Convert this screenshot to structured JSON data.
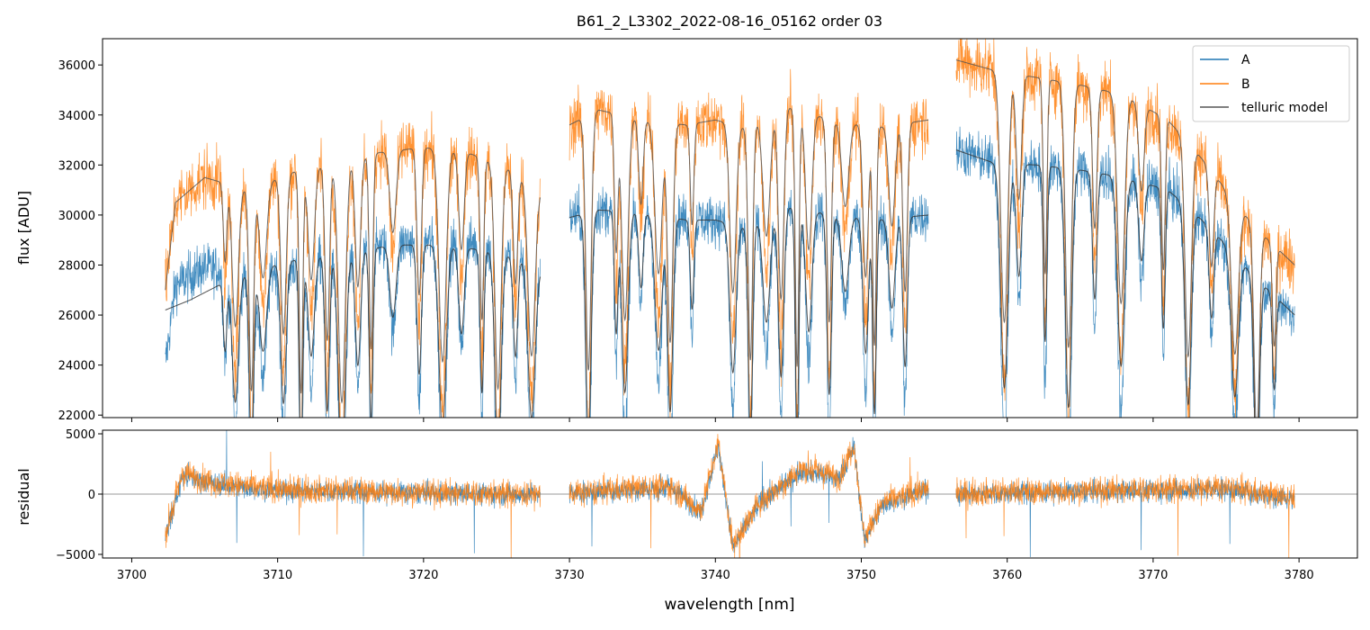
{
  "figure": {
    "title": "B61_2_L3302_2022-08-16_05162  order 03"
  },
  "chart_data": [
    {
      "type": "line",
      "panel": "top",
      "title": "B61_2_L3302_2022-08-16_05162  order 03",
      "xlabel": "",
      "ylabel": "flux [ADU]",
      "xlim": [
        3698,
        3784
      ],
      "ylim": [
        21900,
        37050
      ],
      "x_ticks": [
        3700,
        3710,
        3720,
        3730,
        3740,
        3750,
        3760,
        3770,
        3780
      ],
      "y_ticks": [
        22000,
        24000,
        26000,
        28000,
        30000,
        32000,
        34000,
        36000
      ],
      "x_tick_labels_shown": false,
      "legend": {
        "position": "top-right",
        "entries": [
          "A",
          "B",
          "telluric model"
        ]
      },
      "series": [
        {
          "name": "A",
          "color": "#1f77b4",
          "noise": 700,
          "continuum": [
            [
              3702.3,
              24000
            ],
            [
              3703,
              27200
            ],
            [
              3705,
              27900
            ],
            [
              3708,
              27600
            ],
            [
              3711,
              28000
            ],
            [
              3714,
              28500
            ],
            [
              3717,
              28800
            ],
            [
              3720,
              29000
            ],
            [
              3723,
              28900
            ],
            [
              3725,
              28700
            ],
            [
              3728,
              28100
            ]
          ],
          "segments": [
            [
              3702.3,
              3728
            ],
            [
              3730,
              3754.6
            ],
            [
              3756.5,
              3779.7
            ]
          ]
        },
        {
          "name": "B",
          "color": "#ff7f0e",
          "noise": 900,
          "continuum": [
            [
              3702.3,
              27000
            ],
            [
              3703,
              30500
            ],
            [
              3705,
              31500
            ],
            [
              3708,
              31000
            ],
            [
              3711,
              31700
            ],
            [
              3714,
              32100
            ],
            [
              3717,
              32500
            ],
            [
              3720,
              32700
            ],
            [
              3723,
              32500
            ],
            [
              3726,
              31800
            ],
            [
              3728,
              31000
            ]
          ],
          "segments": [
            [
              3702.3,
              3728
            ],
            [
              3730,
              3754.6
            ],
            [
              3756.5,
              3779.7
            ]
          ]
        },
        {
          "name": "telluric model",
          "color": "#555555",
          "segments": [
            [
              3702.3,
              3728
            ],
            [
              3730,
              3754.6
            ],
            [
              3756.5,
              3779.7
            ]
          ]
        }
      ],
      "continuum_A_mid": [
        [
          3730,
          29900
        ],
        [
          3732,
          30200
        ],
        [
          3735,
          30100
        ],
        [
          3738,
          29800
        ],
        [
          3740,
          29800
        ],
        [
          3742,
          29500
        ],
        [
          3745,
          30300
        ],
        [
          3748,
          30000
        ],
        [
          3751,
          29800
        ],
        [
          3754.6,
          30000
        ]
      ],
      "continuum_B_mid": [
        [
          3730,
          33600
        ],
        [
          3732,
          34200
        ],
        [
          3735,
          33800
        ],
        [
          3738,
          33600
        ],
        [
          3740,
          33800
        ],
        [
          3742,
          33500
        ],
        [
          3745,
          34300
        ],
        [
          3748,
          33800
        ],
        [
          3751,
          33500
        ],
        [
          3754.6,
          33800
        ]
      ],
      "continuum_A_right": [
        [
          3756.5,
          32600
        ],
        [
          3759,
          32100
        ],
        [
          3762,
          32000
        ],
        [
          3765,
          31800
        ],
        [
          3768,
          31500
        ],
        [
          3771,
          31000
        ],
        [
          3773,
          30000
        ],
        [
          3775,
          28800
        ],
        [
          3777,
          27500
        ],
        [
          3779.7,
          26000
        ]
      ],
      "continuum_B_right": [
        [
          3756.5,
          36200
        ],
        [
          3759,
          35800
        ],
        [
          3762,
          35500
        ],
        [
          3765,
          35200
        ],
        [
          3768,
          34800
        ],
        [
          3771,
          33800
        ],
        [
          3773,
          32500
        ],
        [
          3775,
          31000
        ],
        [
          3777,
          29500
        ],
        [
          3779.7,
          28000
        ]
      ],
      "telluric_A": [
        [
          3702.3,
          26200
        ],
        [
          3704,
          26600
        ],
        [
          3706,
          27200
        ],
        [
          3709,
          27900
        ],
        [
          3712,
          28300
        ],
        [
          3715,
          28500
        ],
        [
          3718,
          28800
        ],
        [
          3721,
          28800
        ],
        [
          3724,
          28600
        ],
        [
          3727,
          28200
        ],
        [
          3728,
          27800
        ]
      ],
      "absorption_lines": [
        3706.4,
        3707.1,
        3708.2,
        3709.0,
        3710.4,
        3711.6,
        3712.3,
        3713.4,
        3714.4,
        3715.5,
        3716.4,
        3717.9,
        3719.7,
        3721.3,
        3722.6,
        3724.0,
        3725.1,
        3726.3,
        3727.4,
        3731.3,
        3733.2,
        3733.8,
        3734.9,
        3736.1,
        3736.9,
        3738.4,
        3741.2,
        3742.4,
        3743.5,
        3744.5,
        3745.6,
        3746.4,
        3747.8,
        3748.9,
        3750.3,
        3750.9,
        3752.1,
        3753.0,
        3759.8,
        3760.8,
        3762.6,
        3764.2,
        3766.0,
        3767.8,
        3769.2,
        3770.7,
        3772.4,
        3774.0,
        3775.6,
        3777.1,
        3778.3
      ]
    },
    {
      "type": "line",
      "panel": "bottom",
      "xlabel": "wavelength [nm]",
      "ylabel": "residual",
      "xlim": [
        3698,
        3784
      ],
      "ylim": [
        -5300,
        5300
      ],
      "x_ticks": [
        3700,
        3710,
        3720,
        3730,
        3740,
        3750,
        3760,
        3770,
        3780
      ],
      "x_tick_labels": [
        "3700",
        "3710",
        "3720",
        "3730",
        "3740",
        "3750",
        "3760",
        "3770",
        "3780"
      ],
      "y_ticks": [
        -5000,
        0,
        5000
      ],
      "y_tick_labels": [
        "−5000",
        "0",
        "5000"
      ],
      "zero_line": true,
      "series": [
        {
          "name": "A",
          "color": "#1f77b4",
          "noise": 650,
          "trend": [
            [
              3702.3,
              -3500
            ],
            [
              3703.5,
              1500
            ],
            [
              3706,
              800
            ],
            [
              3710,
              300
            ],
            [
              3715,
              200
            ],
            [
              3720,
              100
            ],
            [
              3725,
              0
            ],
            [
              3728,
              0
            ],
            [
              3730,
              0
            ],
            [
              3734,
              400
            ],
            [
              3737,
              500
            ],
            [
              3739,
              -1500
            ],
            [
              3740.2,
              4000
            ],
            [
              3741.2,
              -4500
            ],
            [
              3743,
              -800
            ],
            [
              3746,
              2000
            ],
            [
              3748.5,
              1200
            ],
            [
              3749.5,
              4000
            ],
            [
              3750.2,
              -3800
            ],
            [
              3751.5,
              -800
            ],
            [
              3754.6,
              400
            ],
            [
              3756.5,
              0
            ],
            [
              3765,
              200
            ],
            [
              3775,
              400
            ],
            [
              3779.7,
              -400
            ]
          ],
          "segments": [
            [
              3702.3,
              3728
            ],
            [
              3730,
              3754.6
            ],
            [
              3756.5,
              3779.7
            ]
          ]
        },
        {
          "name": "B",
          "color": "#ff7f0e",
          "noise": 800,
          "trend": [
            [
              3702.3,
              -3300
            ],
            [
              3703.5,
              1700
            ],
            [
              3706,
              900
            ],
            [
              3710,
              400
            ],
            [
              3715,
              300
            ],
            [
              3720,
              150
            ],
            [
              3725,
              50
            ],
            [
              3728,
              0
            ],
            [
              3730,
              0
            ],
            [
              3734,
              500
            ],
            [
              3737,
              600
            ],
            [
              3739,
              -1400
            ],
            [
              3740.2,
              4200
            ],
            [
              3741.2,
              -4300
            ],
            [
              3743,
              -700
            ],
            [
              3746,
              2200
            ],
            [
              3748.5,
              1400
            ],
            [
              3749.5,
              4200
            ],
            [
              3750.2,
              -3600
            ],
            [
              3751.5,
              -700
            ],
            [
              3754.6,
              500
            ],
            [
              3756.5,
              100
            ],
            [
              3765,
              300
            ],
            [
              3775,
              500
            ],
            [
              3779.7,
              -300
            ]
          ],
          "segments": [
            [
              3702.3,
              3728
            ],
            [
              3730,
              3754.6
            ],
            [
              3756.5,
              3779.7
            ]
          ]
        }
      ]
    }
  ]
}
